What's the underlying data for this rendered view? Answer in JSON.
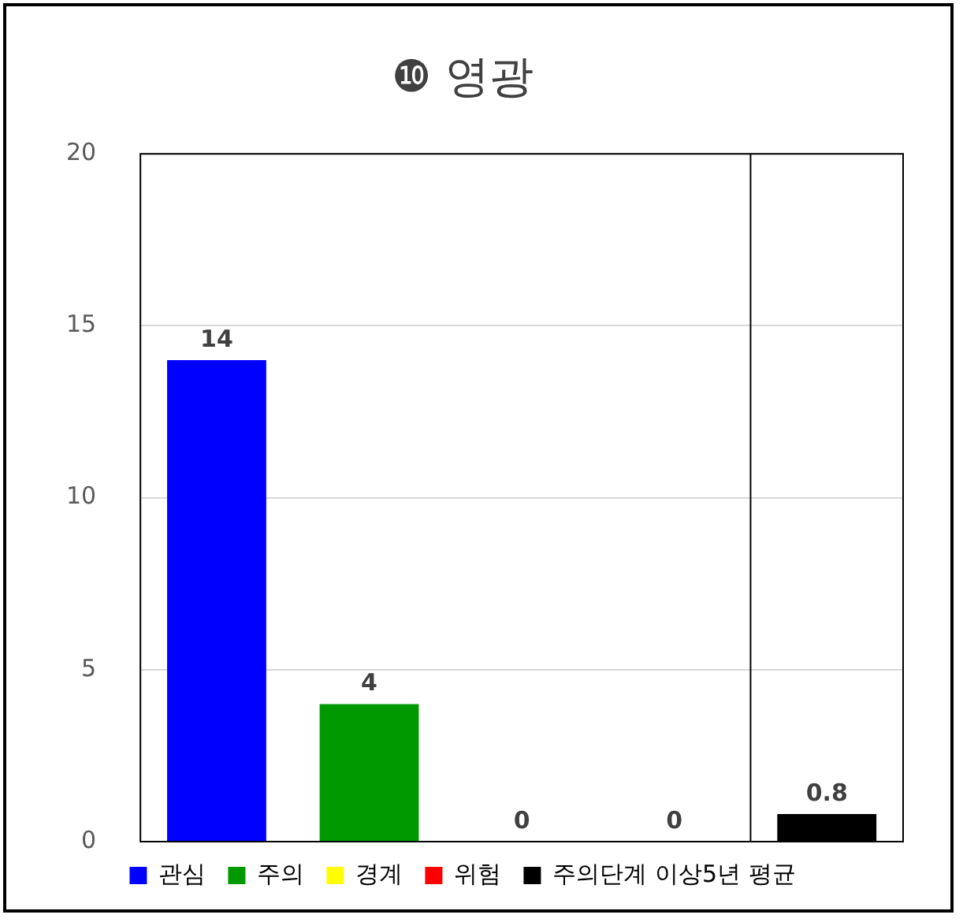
{
  "chart_data": {
    "type": "bar",
    "title": "❿ 영광",
    "categories": [
      null,
      null,
      null,
      null,
      null
    ],
    "series": [
      {
        "name": "관심",
        "color": "#0000ff",
        "values": [
          14,
          null,
          null,
          null,
          null
        ]
      },
      {
        "name": "주의",
        "color": "#009900",
        "values": [
          null,
          4,
          null,
          null,
          null
        ]
      },
      {
        "name": "경계",
        "color": "#ffff00",
        "values": [
          null,
          null,
          0,
          null,
          null
        ]
      },
      {
        "name": "위험",
        "color": "#ff0000",
        "values": [
          null,
          null,
          null,
          0,
          null
        ]
      },
      {
        "name": "주의단계 이상5년 평균",
        "color": "#000000",
        "values": [
          null,
          null,
          null,
          null,
          0.8
        ]
      }
    ],
    "ylim": [
      0,
      20
    ],
    "yticks": [
      0,
      5,
      10,
      15,
      20
    ],
    "grid": "y",
    "legend": "bottom",
    "data_labels": true
  }
}
